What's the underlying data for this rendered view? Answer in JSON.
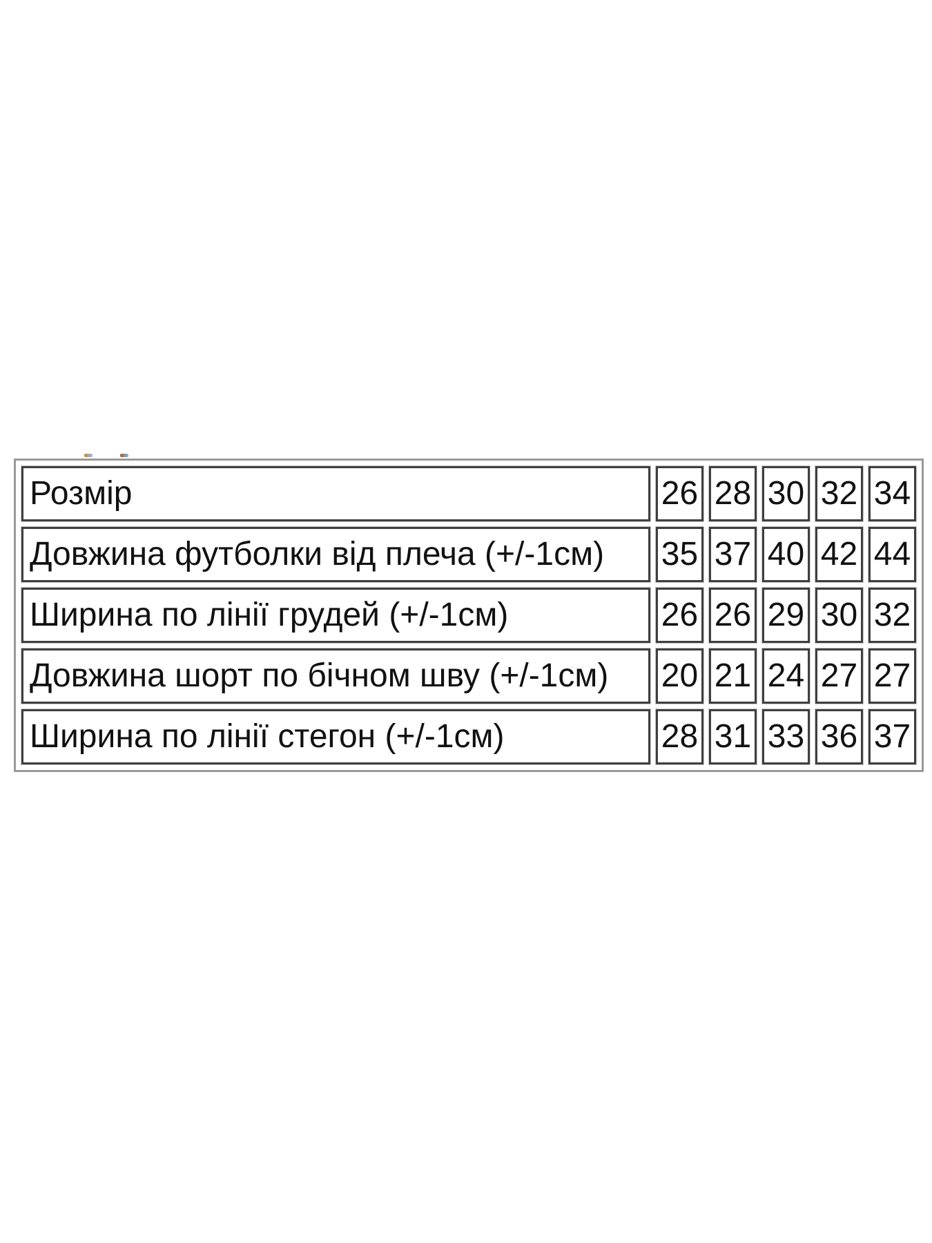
{
  "page": {
    "background_color": "#ffffff",
    "text_color": "#111111"
  },
  "size_table": {
    "outer_border_color": "#9a9a9a",
    "cell_border_color": "#3f3f3f",
    "rows": [
      {
        "label": "Розмір",
        "values": [
          "26",
          "28",
          "30",
          "32",
          "34"
        ]
      },
      {
        "label": "Довжина футболки від плеча (+/-1см)",
        "values": [
          "35",
          "37",
          "40",
          "42",
          "44"
        ]
      },
      {
        "label": "Ширина по лінії грудей (+/-1см)",
        "values": [
          "26",
          "26",
          "29",
          "30",
          "32"
        ]
      },
      {
        "label": "Довжина шорт по бічном шву (+/-1см)",
        "values": [
          "20",
          "21",
          "24",
          "27",
          "27"
        ]
      },
      {
        "label": "Ширина по лінії стегон (+/-1см)",
        "values": [
          "28",
          "31",
          "33",
          "36",
          "37"
        ]
      }
    ]
  },
  "artifacts": {
    "left_mark_colors": [
      "#c9881f",
      "#9fc0ea"
    ],
    "right_mark_colors": [
      "#a85a20",
      "#8fb7e6"
    ]
  }
}
